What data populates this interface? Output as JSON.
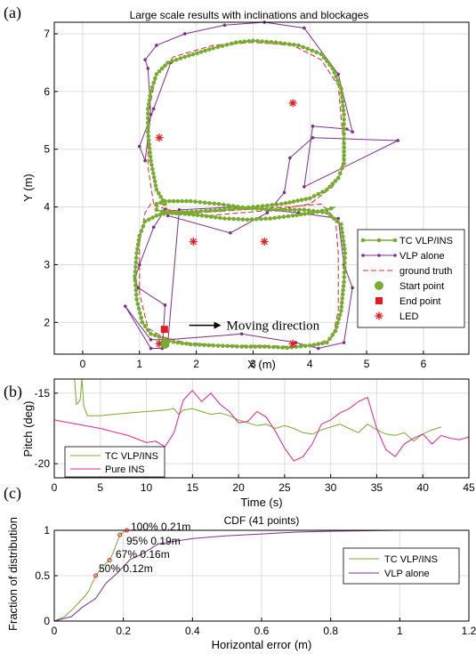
{
  "colors": {
    "tc": "#77ac30",
    "vlp": "#7e2f8e",
    "ins": "#e0228f",
    "ground_truth": "#d62728",
    "start": "#77ac30",
    "end": "#e41a1c",
    "led": "#e41a1c",
    "grid": "#dddddd"
  },
  "chart_data": [
    {
      "panel_label": "(a)",
      "type": "line",
      "title": "Large scale results with inclinations and blockages",
      "xlabel": "X (m)",
      "ylabel": "Y (m)",
      "xlim": [
        -0.5,
        6.8
      ],
      "ylim": [
        1.45,
        7.2
      ],
      "xticks": [
        0,
        1,
        2,
        3,
        4,
        5,
        6
      ],
      "yticks": [
        2,
        3,
        4,
        5,
        6,
        7
      ],
      "grid": true,
      "legend_position": "right-lower",
      "legend": [
        "TC VLP/INS",
        "VLP alone",
        "ground truth",
        "Start point",
        "End point",
        "LED"
      ],
      "annotation": {
        "text": "Moving direction",
        "from": [
          2.0,
          1.95
        ],
        "to": [
          2.25,
          1.95
        ]
      },
      "ground_truth": {
        "name": "ground truth",
        "x": [
          1.25,
          1.15,
          1.15,
          1.3,
          1.6,
          2.3,
          3.0,
          3.7,
          4.2,
          4.5,
          4.6,
          4.55,
          4.4,
          4.0,
          3.4,
          2.8,
          2.2,
          1.7,
          1.35,
          1.2,
          1.1,
          1.0,
          1.0,
          1.15,
          1.4,
          1.8,
          2.5,
          3.2,
          3.7,
          4.1,
          4.4,
          4.5,
          4.5,
          4.45,
          4.2,
          3.6,
          2.8,
          2.0,
          1.5,
          1.4
        ],
        "y": [
          4.05,
          4.7,
          5.6,
          6.3,
          6.6,
          6.8,
          6.85,
          6.8,
          6.55,
          6.1,
          5.0,
          4.6,
          4.35,
          4.05,
          3.95,
          3.9,
          3.85,
          3.9,
          4.0,
          4.05,
          3.9,
          3.4,
          2.5,
          1.9,
          1.75,
          1.65,
          1.6,
          1.6,
          1.58,
          1.6,
          1.75,
          2.2,
          3.2,
          3.8,
          4.05,
          4.0,
          3.95,
          3.9,
          3.95,
          4.05
        ]
      },
      "series_tc": {
        "name": "TC VLP/INS",
        "x": [
          1.45,
          1.3,
          1.2,
          1.15,
          1.15,
          1.2,
          1.3,
          1.5,
          1.8,
          2.3,
          2.7,
          3.0,
          3.4,
          3.8,
          4.2,
          4.4,
          4.55,
          4.6,
          4.6,
          4.6,
          4.5,
          4.3,
          4.0,
          3.5,
          3.0,
          2.5,
          2.0,
          1.6,
          1.4,
          1.3,
          1.3,
          1.45,
          1.9,
          2.4,
          2.9,
          3.4,
          3.9,
          4.3,
          4.55,
          4.62,
          4.6,
          4.55,
          4.45,
          4.3,
          4.0,
          3.6,
          3.2,
          2.8,
          2.3,
          1.9,
          1.6,
          1.45,
          1.35,
          1.2,
          1.05,
          0.95,
          0.92,
          0.95,
          1.0,
          1.1,
          1.3,
          1.5,
          1.8,
          2.1,
          2.5,
          2.9,
          3.3,
          3.7,
          4.05,
          4.3,
          4.45
        ],
        "y": [
          4.05,
          4.3,
          4.8,
          5.3,
          5.7,
          6.0,
          6.3,
          6.5,
          6.6,
          6.75,
          6.85,
          6.88,
          6.85,
          6.8,
          6.65,
          6.4,
          6.05,
          5.6,
          5.1,
          4.75,
          4.5,
          4.3,
          4.15,
          4.05,
          4.0,
          3.95,
          3.92,
          3.9,
          3.92,
          3.95,
          4.05,
          4.1,
          4.1,
          4.05,
          3.98,
          3.95,
          3.95,
          3.9,
          3.7,
          3.2,
          2.7,
          2.2,
          1.85,
          1.65,
          1.6,
          1.56,
          1.58,
          1.58,
          1.6,
          1.62,
          1.66,
          1.7,
          1.75,
          1.8,
          2.0,
          2.4,
          2.8,
          3.2,
          3.5,
          3.75,
          3.85,
          3.9,
          3.88,
          3.85,
          3.8,
          3.78,
          3.8,
          3.85,
          3.9,
          3.95,
          4.0
        ]
      },
      "series_vlp": {
        "name": "VLP alone",
        "x": [
          1.55,
          1.25,
          1.0,
          1.1,
          1.2,
          1.15,
          1.1,
          1.3,
          1.8,
          2.5,
          3.2,
          3.9,
          4.5,
          4.75,
          4.65,
          4.05,
          3.9,
          5.55,
          4.05,
          3.65,
          3.55,
          3.25,
          2.6,
          1.5,
          1.45,
          1.25,
          1.0,
          0.92,
          0.98,
          1.45,
          1.4,
          1.2,
          0.75,
          1.2,
          1.5,
          2.8,
          3.75,
          4.15,
          4.6,
          4.75,
          4.6,
          4.5,
          3.8,
          2.7,
          1.7,
          1.5
        ],
        "y": [
          6.5,
          5.7,
          5.05,
          4.8,
          5.6,
          6.4,
          6.55,
          6.8,
          7.0,
          7.15,
          7.2,
          7.1,
          6.3,
          5.3,
          5.35,
          5.4,
          4.35,
          5.15,
          5.2,
          4.85,
          4.25,
          3.9,
          3.55,
          3.85,
          3.95,
          3.65,
          3.0,
          2.75,
          2.6,
          2.3,
          1.55,
          1.55,
          2.28,
          1.7,
          1.7,
          1.8,
          1.65,
          1.55,
          1.65,
          2.6,
          3.0,
          3.8,
          3.9,
          4.0,
          3.95,
          1.65
        ]
      },
      "start_point": {
        "name": "Start point",
        "x": 1.45,
        "y": 1.62
      },
      "end_point": {
        "name": "End point",
        "x": 1.44,
        "y": 1.88
      },
      "leds": {
        "name": "LED",
        "x": [
          1.35,
          3.7,
          1.95,
          3.2,
          1.35,
          3.7
        ],
        "y": [
          5.2,
          5.8,
          3.4,
          3.4,
          1.63,
          1.63
        ]
      }
    },
    {
      "panel_label": "(b)",
      "type": "line",
      "xlabel": "Time (s)",
      "ylabel": "Pitch (deg)",
      "xlim": [
        0,
        45
      ],
      "ylim": [
        -21,
        -14
      ],
      "xticks": [
        0,
        5,
        10,
        15,
        20,
        25,
        30,
        35,
        40,
        45
      ],
      "yticks": [
        -20,
        -15
      ],
      "grid": true,
      "legend_position": "bottom-left",
      "series": [
        {
          "name": "TC VLP/INS",
          "x": [
            2.2,
            2.4,
            2.8,
            3.0,
            3.2,
            3.6,
            5,
            8,
            10,
            12,
            13,
            13.5,
            14,
            15,
            16,
            17,
            18,
            19,
            20,
            21,
            22,
            23,
            24,
            25,
            26,
            27,
            28,
            29,
            30,
            31,
            32,
            33,
            34,
            35,
            36,
            37,
            38,
            39,
            40,
            41,
            42
          ],
          "y": [
            -14,
            -15.8,
            -15.5,
            -14,
            -15.9,
            -16.6,
            -16.6,
            -16.4,
            -16.3,
            -16.2,
            -16.1,
            -16.5,
            -16.2,
            -16.1,
            -16.3,
            -16.5,
            -16.4,
            -16.6,
            -16.9,
            -17.1,
            -17.3,
            -17.2,
            -17.5,
            -17.3,
            -17.5,
            -17.8,
            -17.9,
            -17.6,
            -17.4,
            -17.2,
            -17.5,
            -17.8,
            -17.2,
            -17.6,
            -17.9,
            -18.0,
            -17.8,
            -18.4,
            -17.9,
            -17.6,
            -17.4
          ]
        },
        {
          "name": "Pure INS",
          "x": [
            0,
            5,
            8,
            10,
            11,
            12,
            13,
            14,
            15,
            16,
            17,
            18,
            19,
            20,
            21,
            22,
            23,
            24,
            25,
            26,
            27,
            28,
            29,
            30,
            31,
            32,
            33,
            34,
            35,
            36,
            37,
            38,
            39,
            40,
            41,
            42,
            43,
            44,
            45
          ],
          "y": [
            -16.9,
            -17.5,
            -18.0,
            -18.5,
            -18.4,
            -18.8,
            -17.8,
            -15.5,
            -14.8,
            -15.6,
            -15.0,
            -15.8,
            -16.3,
            -17.1,
            -17.0,
            -16.3,
            -16.7,
            -17.7,
            -18.9,
            -19.8,
            -19.5,
            -18.6,
            -17.2,
            -16.9,
            -16.4,
            -16.1,
            -15.6,
            -15.3,
            -17.5,
            -19.0,
            -19.5,
            -18.6,
            -18.2,
            -17.9,
            -18.6,
            -18.0,
            -18.2,
            -18.3,
            -18.1
          ]
        }
      ]
    },
    {
      "panel_label": "(c)",
      "type": "line",
      "title": "CDF (41 points)",
      "xlabel": "Horizontal error (m)",
      "ylabel": "Fraction of distribution",
      "xlim": [
        0,
        1.2
      ],
      "ylim": [
        0,
        1
      ],
      "xticks": [
        0,
        0.2,
        0.4,
        0.6,
        0.8,
        1,
        1.2
      ],
      "yticks": [
        0,
        0.5,
        1
      ],
      "grid": true,
      "legend_position": "right",
      "annotations": [
        "100% 0.21m",
        "95% 0.19m",
        "67% 0.16m",
        "50% 0.12m"
      ],
      "annotation_points": [
        {
          "x": 0.21,
          "y": 1.0
        },
        {
          "x": 0.19,
          "y": 0.95
        },
        {
          "x": 0.16,
          "y": 0.67
        },
        {
          "x": 0.12,
          "y": 0.5
        }
      ],
      "series": [
        {
          "name": "TC VLP/INS",
          "x": [
            0.0,
            0.03,
            0.05,
            0.07,
            0.09,
            0.1,
            0.11,
            0.12,
            0.13,
            0.14,
            0.15,
            0.16,
            0.17,
            0.18,
            0.19,
            0.2,
            0.21
          ],
          "y": [
            0.0,
            0.05,
            0.12,
            0.2,
            0.28,
            0.33,
            0.42,
            0.5,
            0.55,
            0.6,
            0.64,
            0.67,
            0.75,
            0.85,
            0.95,
            0.98,
            1.0
          ]
        },
        {
          "name": "VLP alone",
          "x": [
            0.0,
            0.05,
            0.08,
            0.12,
            0.15,
            0.18,
            0.2,
            0.22,
            0.25,
            0.28,
            0.3,
            0.35,
            0.4,
            0.5,
            0.6,
            0.7,
            0.8,
            1.0,
            1.2
          ],
          "y": [
            0.0,
            0.05,
            0.15,
            0.25,
            0.42,
            0.52,
            0.6,
            0.68,
            0.73,
            0.8,
            0.85,
            0.88,
            0.91,
            0.94,
            0.96,
            0.98,
            0.99,
            1.0,
            1.0
          ]
        }
      ]
    }
  ]
}
